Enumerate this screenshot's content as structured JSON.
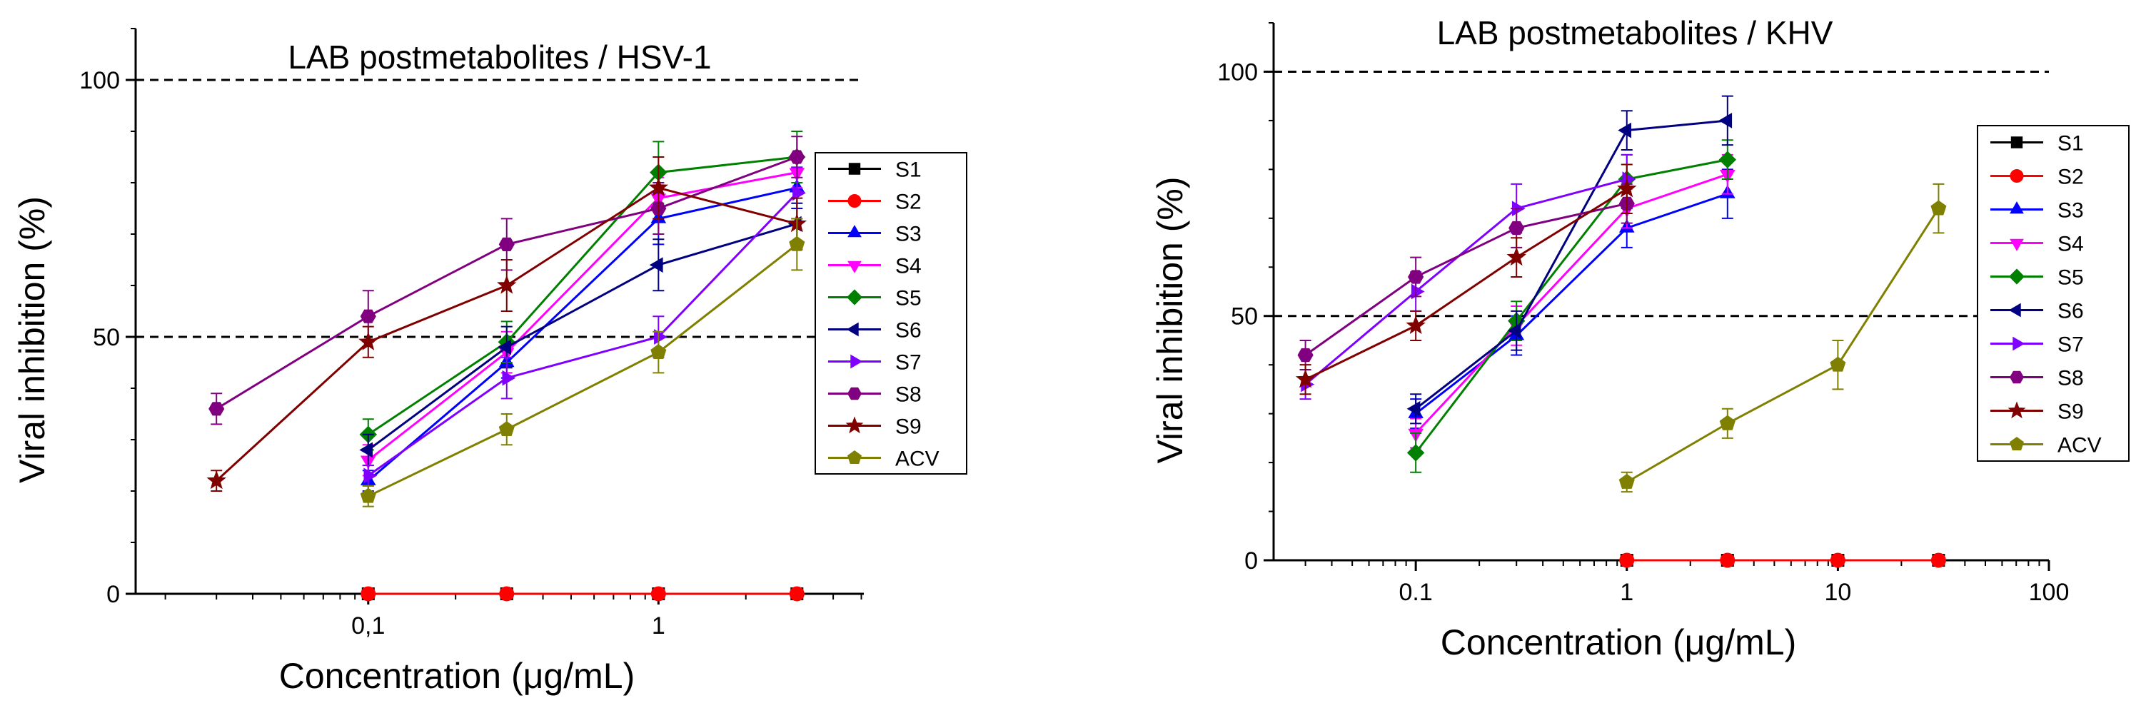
{
  "chart_data": [
    {
      "type": "line",
      "title": "LAB postmetabolites / HSV-1",
      "xlabel": "Concentration (μg/mL)",
      "ylabel": "Viral inhibition (%)",
      "xscale": "log",
      "xlim": [
        0.0158,
        5.1
      ],
      "ylim": [
        0,
        110
      ],
      "x_ticks": [
        0.1,
        1
      ],
      "x_tick_labels": [
        "0,1",
        "1"
      ],
      "y_ticks": [
        0,
        50,
        100
      ],
      "y_tick_labels": [
        "0",
        "50",
        "100"
      ],
      "reference_lines": [
        50,
        100
      ],
      "legend_position": "right",
      "series": [
        {
          "name": "S1",
          "color": "#000000",
          "marker": "square",
          "x": [
            0.1,
            0.3,
            1,
            3
          ],
          "y": [
            0,
            0,
            0,
            0
          ],
          "err": [
            0,
            0,
            0,
            0
          ]
        },
        {
          "name": "S2",
          "color": "#ff0000",
          "marker": "circle",
          "x": [
            0.1,
            0.3,
            1,
            3
          ],
          "y": [
            0,
            0,
            0,
            0
          ],
          "err": [
            0,
            0,
            0,
            0
          ]
        },
        {
          "name": "S3",
          "color": "#0000ff",
          "marker": "triangle-up",
          "x": [
            0.1,
            0.3,
            1,
            3
          ],
          "y": [
            22,
            45,
            73,
            79
          ],
          "err": [
            2,
            3,
            5,
            4
          ]
        },
        {
          "name": "S4",
          "color": "#ff00ff",
          "marker": "triangle-down",
          "x": [
            0.1,
            0.3,
            1,
            3
          ],
          "y": [
            26,
            47,
            77,
            82
          ],
          "err": [
            3,
            4,
            4,
            3
          ]
        },
        {
          "name": "S5",
          "color": "#008000",
          "marker": "diamond",
          "x": [
            0.1,
            0.3,
            1,
            3
          ],
          "y": [
            31,
            49,
            82,
            85
          ],
          "err": [
            3,
            4,
            6,
            5
          ]
        },
        {
          "name": "S6",
          "color": "#000080",
          "marker": "triangle-left",
          "x": [
            0.1,
            0.3,
            1,
            3
          ],
          "y": [
            28,
            48,
            64,
            72
          ],
          "err": [
            3,
            4,
            5,
            4
          ]
        },
        {
          "name": "S7",
          "color": "#8000ff",
          "marker": "triangle-right",
          "x": [
            0.1,
            0.3,
            1,
            3
          ],
          "y": [
            23,
            42,
            50,
            78
          ],
          "err": [
            2,
            4,
            4,
            5
          ]
        },
        {
          "name": "S8",
          "color": "#800080",
          "marker": "hexagon",
          "x": [
            0.03,
            0.1,
            0.3,
            1,
            3
          ],
          "y": [
            36,
            54,
            68,
            75,
            85
          ],
          "err": [
            3,
            5,
            5,
            5,
            4
          ]
        },
        {
          "name": "S9",
          "color": "#800000",
          "marker": "star",
          "x": [
            0.03,
            0.1,
            0.3,
            1,
            3
          ],
          "y": [
            22,
            49,
            60,
            79,
            72
          ],
          "err": [
            2,
            3,
            5,
            6,
            5
          ]
        },
        {
          "name": "ACV",
          "color": "#808000",
          "marker": "pentagon",
          "x": [
            0.1,
            0.3,
            1,
            3
          ],
          "y": [
            19,
            32,
            47,
            68
          ],
          "err": [
            2,
            3,
            4,
            5
          ]
        }
      ]
    },
    {
      "type": "line",
      "title": "LAB postmetabolites / KHV",
      "xlabel": "Concentration (μg/mL)",
      "ylabel": "Viral inhibition (%)",
      "xscale": "log",
      "xlim": [
        0.0212,
        100
      ],
      "ylim": [
        0,
        110
      ],
      "x_ticks": [
        0.1,
        1,
        10,
        100
      ],
      "x_tick_labels": [
        "0.1",
        "1",
        "10",
        "100"
      ],
      "y_ticks": [
        0,
        50,
        100
      ],
      "y_tick_labels": [
        "0",
        "50",
        "100"
      ],
      "reference_lines": [
        50,
        100
      ],
      "legend_position": "right",
      "series": [
        {
          "name": "S1",
          "color": "#000000",
          "marker": "square",
          "x": [
            1,
            3,
            10,
            30
          ],
          "y": [
            0,
            0,
            0,
            0
          ],
          "err": [
            0,
            0,
            0,
            0
          ]
        },
        {
          "name": "S2",
          "color": "#ff0000",
          "marker": "circle",
          "x": [
            1,
            3,
            10,
            30
          ],
          "y": [
            0,
            0,
            0,
            0
          ],
          "err": [
            0,
            0,
            0,
            0
          ]
        },
        {
          "name": "S3",
          "color": "#0000ff",
          "marker": "triangle-up",
          "x": [
            0.1,
            0.3,
            1,
            3
          ],
          "y": [
            30,
            46,
            68,
            75
          ],
          "err": [
            3,
            4,
            4,
            5
          ]
        },
        {
          "name": "S4",
          "color": "#ff00ff",
          "marker": "triangle-down",
          "x": [
            0.1,
            0.3,
            1,
            3
          ],
          "y": [
            26,
            48,
            72,
            79
          ],
          "err": [
            3,
            4,
            4,
            4
          ]
        },
        {
          "name": "S5",
          "color": "#008000",
          "marker": "diamond",
          "x": [
            0.1,
            0.3,
            1,
            3
          ],
          "y": [
            22,
            49,
            78,
            82
          ],
          "err": [
            4,
            4,
            5,
            4
          ]
        },
        {
          "name": "S6",
          "color": "#000080",
          "marker": "triangle-left",
          "x": [
            0.1,
            0.3,
            1,
            3
          ],
          "y": [
            31,
            47,
            88,
            90
          ],
          "err": [
            3,
            4,
            4,
            5
          ]
        },
        {
          "name": "S7",
          "color": "#8000ff",
          "marker": "triangle-right",
          "x": [
            0.03,
            0.1,
            0.3,
            1
          ],
          "y": [
            36,
            55,
            72,
            78
          ],
          "err": [
            3,
            4,
            5,
            5
          ]
        },
        {
          "name": "S8",
          "color": "#800080",
          "marker": "hexagon",
          "x": [
            0.03,
            0.1,
            0.3,
            1
          ],
          "y": [
            42,
            58,
            68,
            73
          ],
          "err": [
            3,
            4,
            4,
            4
          ]
        },
        {
          "name": "S9",
          "color": "#800000",
          "marker": "star",
          "x": [
            0.03,
            0.1,
            0.3,
            1
          ],
          "y": [
            37,
            48,
            62,
            76
          ],
          "err": [
            3,
            3,
            4,
            5
          ]
        },
        {
          "name": "ACV",
          "color": "#808000",
          "marker": "pentagon",
          "x": [
            1,
            3,
            10,
            30
          ],
          "y": [
            16,
            28,
            40,
            72
          ],
          "err": [
            2,
            3,
            5,
            5
          ]
        }
      ]
    }
  ]
}
